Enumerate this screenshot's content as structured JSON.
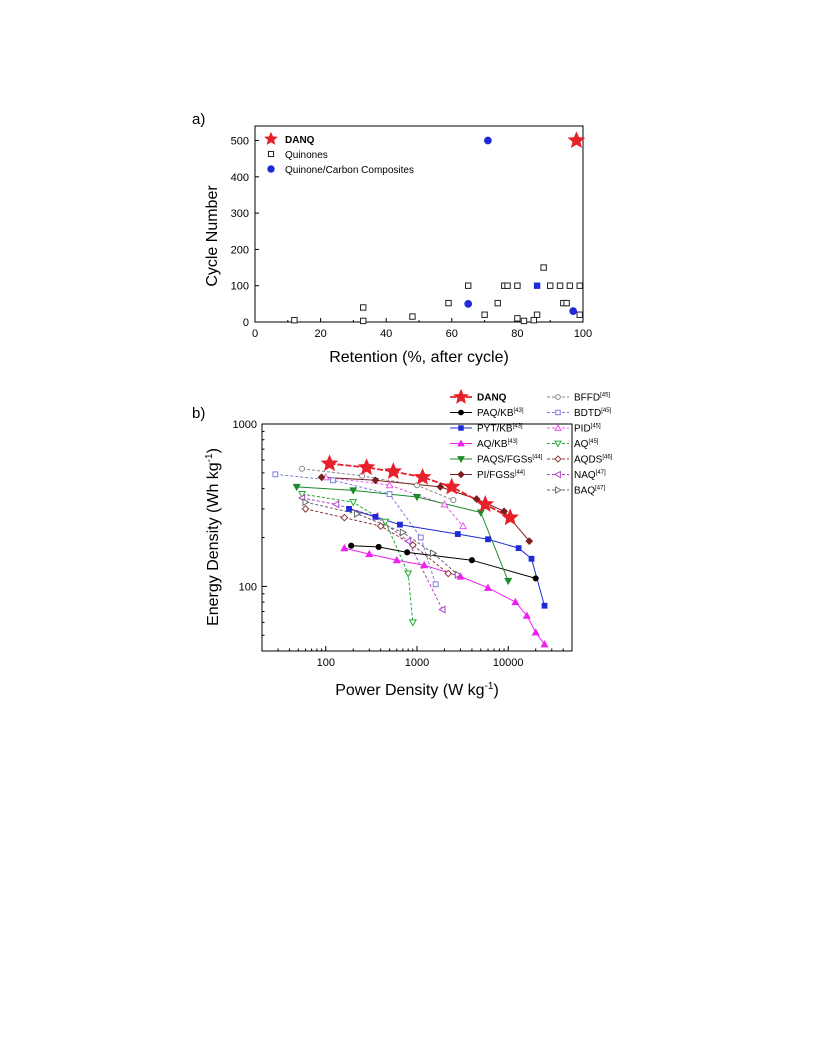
{
  "panels": {
    "a_label": "a)",
    "b_label": "b)"
  },
  "chart_data": [
    {
      "type": "scatter",
      "panel": "a)",
      "xlabel": "Retention (%, after cycle)",
      "ylabel": "Cycle Number",
      "xlim": [
        0,
        100
      ],
      "ylim": [
        0,
        540
      ],
      "xticks": [
        0,
        20,
        40,
        60,
        80,
        100
      ],
      "yticks": [
        0,
        100,
        200,
        300,
        400,
        500
      ],
      "legend_position": "top-left",
      "series": [
        {
          "name": "DANQ",
          "marker": "star",
          "color": "#e8202a",
          "legend_color": "#e8202a",
          "legend_bold": true,
          "points": [
            [
              98,
              500
            ]
          ]
        },
        {
          "name": "Quinones",
          "marker": "open-square",
          "color": "#222222",
          "legend_color": "#000000",
          "legend_bold": false,
          "points": [
            [
              12,
              5
            ],
            [
              33,
              40
            ],
            [
              33,
              3
            ],
            [
              48,
              15
            ],
            [
              59,
              52
            ],
            [
              65,
              100
            ],
            [
              70,
              20
            ],
            [
              74,
              52
            ],
            [
              76,
              100
            ],
            [
              77,
              100
            ],
            [
              80,
              100
            ],
            [
              80,
              10
            ],
            [
              82,
              3
            ],
            [
              85,
              5
            ],
            [
              86,
              20
            ],
            [
              88,
              150
            ],
            [
              90,
              100
            ],
            [
              93,
              100
            ],
            [
              94,
              52
            ],
            [
              95,
              52
            ],
            [
              96,
              100
            ],
            [
              99,
              100
            ],
            [
              99,
              20
            ]
          ]
        },
        {
          "name": "Quinone/Carbon Composites",
          "marker": "filled-circle",
          "color": "#1f2bd6",
          "legend_color": "#000000",
          "legend_bold": false,
          "points": [
            [
              71,
              500
            ],
            [
              65,
              50
            ],
            [
              97,
              30
            ]
          ]
        },
        {
          "name": "",
          "marker": "filled-square",
          "color": "#1f2bd6",
          "legend_color": "#000000",
          "legend_bold": false,
          "points": [
            [
              86,
              100
            ]
          ]
        }
      ]
    },
    {
      "type": "line",
      "panel": "b)",
      "xlabel": "Power Density (W kg",
      "xlabel_sup": "-1",
      "xlabel_end": ")",
      "ylabel": "Energy Density (Wh kg",
      "ylabel_sup": "-1",
      "ylabel_end": ")",
      "x_scale": "log",
      "y_scale": "log",
      "xlim": [
        20,
        50000
      ],
      "ylim": [
        40,
        1000
      ],
      "xticks": [
        {
          "v": 100,
          "label": "100"
        },
        {
          "v": 1000,
          "label": "1000"
        },
        {
          "v": 10000,
          "label": "10000"
        }
      ],
      "yticks": [
        {
          "v": 100,
          "label": "100"
        },
        {
          "v": 1000,
          "label": "1000"
        }
      ],
      "legend_position": "top-right",
      "series": [
        {
          "name": "DANQ",
          "ref": "",
          "marker": "star",
          "fill": true,
          "color": "#e8202a",
          "dash": false,
          "bold": true,
          "points": [
            [
              110,
              570
            ],
            [
              280,
              540
            ],
            [
              550,
              510
            ],
            [
              1150,
              470
            ],
            [
              2400,
              410
            ],
            [
              5600,
              320
            ],
            [
              10500,
              265
            ]
          ]
        },
        {
          "name": "PAQ/KB",
          "ref": "[43]",
          "marker": "circle",
          "fill": true,
          "color": "#000000",
          "dash": false,
          "bold": false,
          "points": [
            [
              190,
              178
            ],
            [
              380,
              175
            ],
            [
              780,
              162
            ],
            [
              4000,
              145
            ],
            [
              20000,
              112
            ]
          ]
        },
        {
          "name": "PYT/KB",
          "ref": "[43]",
          "marker": "square",
          "fill": true,
          "color": "#1f2bd6",
          "dash": false,
          "bold": false,
          "points": [
            [
              180,
              300
            ],
            [
              350,
              268
            ],
            [
              650,
              240
            ],
            [
              2800,
              210
            ],
            [
              6000,
              195
            ],
            [
              13000,
              172
            ],
            [
              18000,
              148
            ],
            [
              25000,
              76
            ]
          ]
        },
        {
          "name": "AQ/KB",
          "ref": "[43]",
          "marker": "triangle-up",
          "fill": true,
          "color": "#ee22ee",
          "dash": false,
          "bold": false,
          "points": [
            [
              160,
              172
            ],
            [
              300,
              158
            ],
            [
              600,
              145
            ],
            [
              1200,
              135
            ],
            [
              3000,
              115
            ],
            [
              6000,
              98
            ],
            [
              12000,
              80
            ],
            [
              16000,
              66
            ],
            [
              20000,
              52
            ],
            [
              25000,
              44
            ]
          ]
        },
        {
          "name": "PAQS/FGSs",
          "ref": "[44]",
          "marker": "triangle-down",
          "fill": true,
          "color": "#1c8a2a",
          "dash": false,
          "bold": false,
          "points": [
            [
              48,
              410
            ],
            [
              200,
              390
            ],
            [
              1000,
              355
            ],
            [
              5000,
              285
            ],
            [
              10000,
              108
            ]
          ]
        },
        {
          "name": "PI/FGSs",
          "ref": "[44]",
          "marker": "diamond",
          "fill": true,
          "color": "#7a1f1f",
          "dash": false,
          "bold": false,
          "points": [
            [
              90,
              470
            ],
            [
              350,
              450
            ],
            [
              1800,
              410
            ],
            [
              4500,
              345
            ],
            [
              9000,
              290
            ],
            [
              17000,
              190
            ]
          ]
        },
        {
          "name": "BFFD",
          "ref": "[45]",
          "marker": "circle",
          "fill": false,
          "color": "#888888",
          "dash": true,
          "bold": false,
          "points": [
            [
              55,
              530
            ],
            [
              250,
              480
            ],
            [
              1000,
              420
            ],
            [
              2500,
              340
            ]
          ]
        },
        {
          "name": "BDTD",
          "ref": "[45]",
          "marker": "square",
          "fill": false,
          "color": "#7d7de0",
          "dash": true,
          "bold": false,
          "points": [
            [
              28,
              490
            ],
            [
              120,
              450
            ],
            [
              500,
              370
            ],
            [
              1100,
              200
            ],
            [
              1600,
              103
            ]
          ]
        },
        {
          "name": "PID",
          "ref": "[45]",
          "marker": "triangle-up",
          "fill": false,
          "color": "#ee55ee",
          "dash": true,
          "bold": false,
          "points": [
            [
              100,
              470
            ],
            [
              500,
              420
            ],
            [
              2000,
              320
            ],
            [
              3200,
              235
            ]
          ]
        },
        {
          "name": "AQ",
          "ref": "[45]",
          "marker": "triangle-down",
          "fill": false,
          "color": "#22aa33",
          "dash": true,
          "bold": false,
          "points": [
            [
              55,
              370
            ],
            [
              200,
              330
            ],
            [
              450,
              250
            ],
            [
              800,
              120
            ],
            [
              900,
              60
            ]
          ]
        },
        {
          "name": "AQDS",
          "ref": "[46]",
          "marker": "diamond",
          "fill": false,
          "color": "#8a3a3a",
          "dash": true,
          "bold": false,
          "points": [
            [
              60,
              300
            ],
            [
              160,
              265
            ],
            [
              400,
              235
            ],
            [
              900,
              180
            ],
            [
              2200,
              120
            ]
          ]
        },
        {
          "name": "NAQ",
          "ref": "[47]",
          "marker": "triangle-left",
          "fill": false,
          "color": "#b044c8",
          "dash": true,
          "bold": false,
          "points": [
            [
              55,
              350
            ],
            [
              130,
              320
            ],
            [
              350,
              270
            ],
            [
              800,
              190
            ],
            [
              1900,
              72
            ]
          ]
        },
        {
          "name": "BAQ",
          "ref": "[47]",
          "marker": "triangle-right",
          "fill": false,
          "color": "#666666",
          "dash": true,
          "bold": false,
          "points": [
            [
              60,
              330
            ],
            [
              220,
              280
            ],
            [
              700,
              215
            ],
            [
              1500,
              160
            ],
            [
              2800,
              118
            ]
          ]
        }
      ]
    }
  ]
}
